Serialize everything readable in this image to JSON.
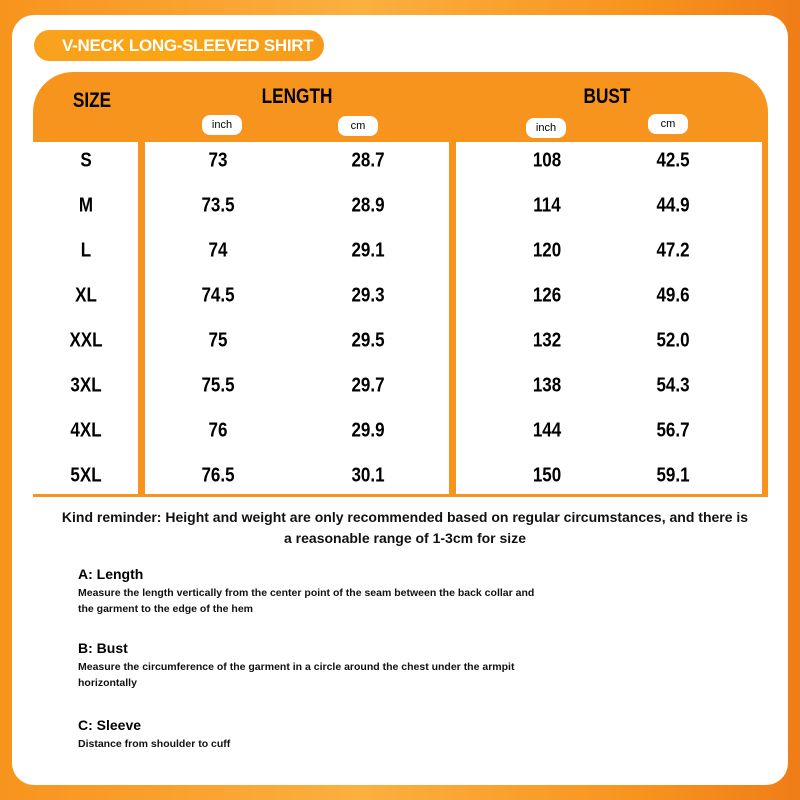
{
  "title": "V-NECK LONG-SLEEVED SHIRT",
  "headers": {
    "size": "SIZE",
    "length": "LENGTH",
    "bust": "BUST",
    "inch": "inch",
    "cm": "cm"
  },
  "rows": [
    {
      "size": "S",
      "length_inch": "73",
      "length_cm": "28.7",
      "bust_inch": "108",
      "bust_cm": "42.5"
    },
    {
      "size": "M",
      "length_inch": "73.5",
      "length_cm": "28.9",
      "bust_inch": "114",
      "bust_cm": "44.9"
    },
    {
      "size": "L",
      "length_inch": "74",
      "length_cm": "29.1",
      "bust_inch": "120",
      "bust_cm": "47.2"
    },
    {
      "size": "XL",
      "length_inch": "74.5",
      "length_cm": "29.3",
      "bust_inch": "126",
      "bust_cm": "49.6"
    },
    {
      "size": "XXL",
      "length_inch": "75",
      "length_cm": "29.5",
      "bust_inch": "132",
      "bust_cm": "52.0"
    },
    {
      "size": "3XL",
      "length_inch": "75.5",
      "length_cm": "29.7",
      "bust_inch": "138",
      "bust_cm": "54.3"
    },
    {
      "size": "4XL",
      "length_inch": "76",
      "length_cm": "29.9",
      "bust_inch": "144",
      "bust_cm": "56.7"
    },
    {
      "size": "5XL",
      "length_inch": "76.5",
      "length_cm": "30.1",
      "bust_inch": "150",
      "bust_cm": "59.1"
    }
  ],
  "reminder": "Kind reminder: Height and weight are only recommended based on regular circumstances, and there is a reasonable range of 1-3cm for size",
  "notes": [
    {
      "title": "A: Length",
      "text": "Measure the length vertically from the center point of the seam between the back collar and the garment to the edge of the hem"
    },
    {
      "title": "B: Bust",
      "text": "Measure the circumference of the garment in a circle around the chest under the armpit horizontally"
    },
    {
      "title": "C: Sleeve",
      "text": "Distance from shoulder to cuff"
    }
  ],
  "colors": {
    "accent": "#f7941d",
    "background": "#ffffff"
  }
}
